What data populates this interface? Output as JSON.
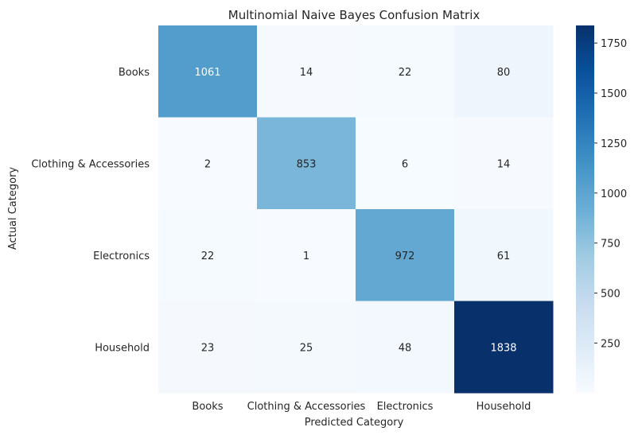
{
  "chart_data": {
    "type": "heatmap",
    "title": "Multinomial Naive Bayes Confusion Matrix",
    "xlabel": "Predicted Category",
    "ylabel": "Actual Category",
    "x_categories": [
      "Books",
      "Clothing & Accessories",
      "Electronics",
      "Household"
    ],
    "y_categories": [
      "Books",
      "Clothing & Accessories",
      "Electronics",
      "Household"
    ],
    "values": [
      [
        1061,
        14,
        22,
        80
      ],
      [
        2,
        853,
        6,
        14
      ],
      [
        22,
        1,
        972,
        61
      ],
      [
        23,
        25,
        48,
        1838
      ]
    ],
    "colormap": "Blues",
    "color_range": [
      1,
      1838
    ],
    "colorbar_ticks": [
      250,
      500,
      750,
      1000,
      1250,
      1500,
      1750
    ]
  }
}
